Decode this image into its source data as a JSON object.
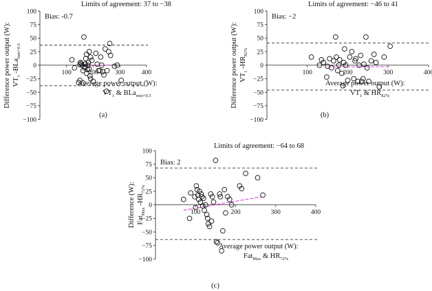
{
  "chart_data": [
    {
      "panel": "(a)",
      "type": "scatter",
      "title": "Limits of agreement: 37 to −38",
      "bias_label": "Bias: -0.7",
      "bias": -0.7,
      "loa_upper": 37,
      "loa_lower": -38,
      "ylabel_main": "Difference power output (W):",
      "ylabel_second": {
        "base1": "VT",
        "sub1": "1",
        "base2": " -BLa",
        "sub2": "min+0.5"
      },
      "xlabel_main": "Average power output (W):",
      "xlabel_second": {
        "base1": "VT",
        "sub1": "1",
        "base2": " & BLa",
        "sub2": "min+0.5"
      },
      "xlim": [
        0,
        400
      ],
      "ylim": [
        -100,
        100
      ],
      "xticks": [
        100,
        200,
        300,
        400
      ],
      "yticks": [
        -100,
        -75,
        -50,
        -25,
        0,
        25,
        50,
        75,
        100
      ],
      "trend": [
        [
          150,
          -1
        ],
        [
          260,
          0
        ]
      ],
      "points": [
        [
          120,
          10
        ],
        [
          130,
          -5
        ],
        [
          145,
          -32
        ],
        [
          150,
          1
        ],
        [
          150,
          -28
        ],
        [
          152,
          5
        ],
        [
          155,
          3
        ],
        [
          158,
          0
        ],
        [
          162,
          -33
        ],
        [
          162,
          -10
        ],
        [
          165,
          52
        ],
        [
          168,
          -5
        ],
        [
          170,
          2
        ],
        [
          170,
          -3
        ],
        [
          172,
          12
        ],
        [
          175,
          20
        ],
        [
          175,
          -15
        ],
        [
          178,
          -8
        ],
        [
          180,
          0
        ],
        [
          182,
          5
        ],
        [
          185,
          -7
        ],
        [
          185,
          25
        ],
        [
          188,
          -20
        ],
        [
          190,
          15
        ],
        [
          190,
          -25
        ],
        [
          195,
          9
        ],
        [
          200,
          -30
        ],
        [
          210,
          22
        ],
        [
          215,
          2
        ],
        [
          220,
          -10
        ],
        [
          225,
          -10
        ],
        [
          228,
          15
        ],
        [
          232,
          0
        ],
        [
          235,
          -12
        ],
        [
          240,
          -18
        ],
        [
          245,
          30
        ],
        [
          250,
          -48
        ],
        [
          252,
          -10
        ],
        [
          258,
          25
        ],
        [
          262,
          40
        ],
        [
          265,
          18
        ],
        [
          280,
          -2
        ],
        [
          290,
          0
        ],
        [
          305,
          -28
        ]
      ]
    },
    {
      "panel": "(b)",
      "type": "scatter",
      "title": "Limits of agreement: −46 to 41",
      "bias_label": "Bias: −2",
      "bias": -2,
      "loa_upper": 41,
      "loa_lower": -46,
      "ylabel_main": "Difference power output (W):",
      "ylabel_second": {
        "base1": "VT",
        "sub1": "1",
        "base2": " -HR",
        "sub2": "82%"
      },
      "xlabel_main": "Average power output (W):",
      "xlabel_second": {
        "base1": "VT",
        "sub1": "1",
        "base2": " & HR",
        "sub2": "82%"
      },
      "xlim": [
        0,
        400
      ],
      "ylim": [
        -100,
        100
      ],
      "xticks": [
        100,
        200,
        300,
        400
      ],
      "yticks": [
        -100,
        -75,
        -50,
        -25,
        0,
        25,
        50,
        75,
        100
      ],
      "trend": [
        [
          150,
          -3
        ],
        [
          300,
          -3
        ]
      ],
      "points": [
        [
          110,
          15
        ],
        [
          130,
          0
        ],
        [
          135,
          10
        ],
        [
          140,
          5
        ],
        [
          148,
          -22
        ],
        [
          150,
          -2
        ],
        [
          155,
          12
        ],
        [
          160,
          -5
        ],
        [
          165,
          8
        ],
        [
          170,
          52
        ],
        [
          172,
          15
        ],
        [
          175,
          -10
        ],
        [
          178,
          0
        ],
        [
          180,
          10
        ],
        [
          185,
          -15
        ],
        [
          188,
          -38
        ],
        [
          190,
          5
        ],
        [
          192,
          30
        ],
        [
          195,
          0
        ],
        [
          200,
          -28
        ],
        [
          205,
          15
        ],
        [
          210,
          25
        ],
        [
          215,
          -25
        ],
        [
          218,
          8
        ],
        [
          220,
          12
        ],
        [
          225,
          -30
        ],
        [
          228,
          0
        ],
        [
          232,
          18
        ],
        [
          235,
          -30
        ],
        [
          238,
          -25
        ],
        [
          240,
          2
        ],
        [
          245,
          52
        ],
        [
          248,
          -5
        ],
        [
          252,
          -30
        ],
        [
          258,
          8
        ],
        [
          265,
          20
        ],
        [
          270,
          5
        ],
        [
          278,
          -40
        ],
        [
          290,
          15
        ],
        [
          305,
          35
        ]
      ]
    },
    {
      "panel": "(c)",
      "type": "scatter",
      "title": "Limits of agreement: −64 to 68",
      "bias_label": "Bias: 2",
      "bias": 2,
      "loa_upper": 68,
      "loa_lower": -64,
      "ylabel_main": "Difference (W):",
      "ylabel_second": {
        "base1": "Fat",
        "sub1": "Max",
        "base2": " -HR",
        "sub2": "72%"
      },
      "xlabel_main": "Average power output (W):",
      "xlabel_second": {
        "base1": "Fat",
        "sub1": "Max",
        "base2": " & HR",
        "sub2": "72%"
      },
      "xlim": [
        0,
        400
      ],
      "ylim": [
        -100,
        100
      ],
      "xticks": [
        100,
        200,
        300,
        400
      ],
      "yticks": [
        -100,
        -75,
        -50,
        -25,
        0,
        25,
        50,
        75,
        100
      ],
      "trend": [
        [
          70,
          -10
        ],
        [
          265,
          15
        ]
      ],
      "points": [
        [
          70,
          10
        ],
        [
          85,
          -25
        ],
        [
          88,
          22
        ],
        [
          98,
          15
        ],
        [
          100,
          -5
        ],
        [
          102,
          35
        ],
        [
          104,
          28
        ],
        [
          106,
          18
        ],
        [
          108,
          10
        ],
        [
          110,
          25
        ],
        [
          112,
          5
        ],
        [
          114,
          20
        ],
        [
          116,
          15
        ],
        [
          118,
          -2
        ],
        [
          120,
          12
        ],
        [
          122,
          -10
        ],
        [
          125,
          0
        ],
        [
          128,
          -18
        ],
        [
          130,
          -25
        ],
        [
          132,
          -35
        ],
        [
          135,
          -40
        ],
        [
          138,
          20
        ],
        [
          140,
          -30
        ],
        [
          142,
          15
        ],
        [
          145,
          5
        ],
        [
          150,
          82
        ],
        [
          152,
          -68
        ],
        [
          155,
          -70
        ],
        [
          160,
          20
        ],
        [
          162,
          15
        ],
        [
          165,
          -85
        ],
        [
          168,
          -48
        ],
        [
          172,
          28
        ],
        [
          175,
          -15
        ],
        [
          180,
          15
        ],
        [
          185,
          10
        ],
        [
          190,
          0
        ],
        [
          210,
          35
        ],
        [
          215,
          30
        ],
        [
          225,
          58
        ],
        [
          255,
          50
        ],
        [
          268,
          18
        ]
      ]
    }
  ]
}
